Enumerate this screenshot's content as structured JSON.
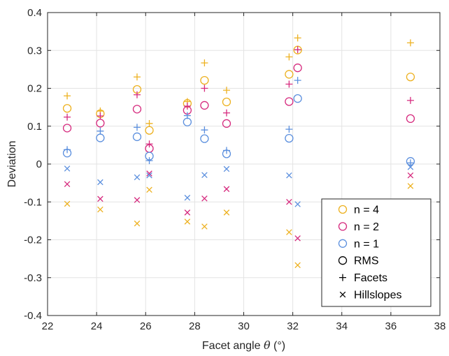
{
  "chart_data": {
    "type": "scatter",
    "xlabel_prefix": "Facet angle ",
    "xlabel_symbol": "θ",
    "xlabel_suffix": " (°)",
    "ylabel": "Deviation",
    "xlim": [
      22,
      38
    ],
    "ylim": [
      -0.4,
      0.4
    ],
    "xticks": [
      22,
      24,
      26,
      28,
      30,
      32,
      34,
      36,
      38
    ],
    "yticks": [
      -0.4,
      -0.3,
      -0.2,
      -0.1,
      0,
      0.1,
      0.2,
      0.3,
      0.4
    ],
    "xtick_labels": [
      "22",
      "24",
      "26",
      "28",
      "30",
      "32",
      "34",
      "36",
      "38"
    ],
    "ytick_labels": [
      "-0.4",
      "-0.3",
      "-0.2",
      "-0.1",
      "0",
      "0.1",
      "0.2",
      "0.3",
      "0.4"
    ],
    "grid": true,
    "legend_position": "bottom-right",
    "colors": {
      "n4": "#EDB120",
      "n2": "#D62A7E",
      "n1": "#5B8FDE",
      "marker_key": "#000000"
    },
    "legend": [
      {
        "label": "n = 4",
        "marker": "circle",
        "color_key": "n4"
      },
      {
        "label": "n = 2",
        "marker": "circle",
        "color_key": "n2"
      },
      {
        "label": "n = 1",
        "marker": "circle",
        "color_key": "n1"
      },
      {
        "label": "RMS",
        "marker": "circle",
        "color_key": "marker_key"
      },
      {
        "label": "Facets",
        "marker": "plus",
        "color_key": "marker_key"
      },
      {
        "label": "Hillslopes",
        "marker": "cross",
        "color_key": "marker_key"
      }
    ],
    "series": [
      {
        "n": "n4",
        "marker": "circle",
        "points": [
          [
            22.8,
            0.147
          ],
          [
            24.15,
            0.133
          ],
          [
            25.65,
            0.197
          ],
          [
            26.15,
            0.089
          ],
          [
            27.7,
            0.16
          ],
          [
            28.4,
            0.221
          ],
          [
            29.3,
            0.164
          ],
          [
            31.85,
            0.237
          ],
          [
            32.2,
            0.301
          ],
          [
            36.8,
            0.23
          ]
        ]
      },
      {
        "n": "n4",
        "marker": "plus",
        "points": [
          [
            22.8,
            0.18
          ],
          [
            24.15,
            0.14
          ],
          [
            25.65,
            0.23
          ],
          [
            26.15,
            0.107
          ],
          [
            27.7,
            0.165
          ],
          [
            28.4,
            0.267
          ],
          [
            29.3,
            0.195
          ],
          [
            31.85,
            0.283
          ],
          [
            32.2,
            0.333
          ],
          [
            36.8,
            0.32
          ]
        ]
      },
      {
        "n": "n4",
        "marker": "cross",
        "points": [
          [
            22.8,
            -0.105
          ],
          [
            24.15,
            -0.12
          ],
          [
            25.65,
            -0.157
          ],
          [
            26.15,
            -0.068
          ],
          [
            27.7,
            -0.152
          ],
          [
            28.4,
            -0.165
          ],
          [
            29.3,
            -0.128
          ],
          [
            31.85,
            -0.18
          ],
          [
            32.2,
            -0.267
          ],
          [
            36.8,
            -0.058
          ]
        ]
      },
      {
        "n": "n2",
        "marker": "circle",
        "points": [
          [
            22.8,
            0.095
          ],
          [
            24.15,
            0.108
          ],
          [
            25.65,
            0.145
          ],
          [
            26.15,
            0.041
          ],
          [
            27.7,
            0.142
          ],
          [
            28.4,
            0.155
          ],
          [
            29.3,
            0.107
          ],
          [
            31.85,
            0.165
          ],
          [
            32.2,
            0.254
          ],
          [
            36.8,
            0.12
          ]
        ]
      },
      {
        "n": "n2",
        "marker": "plus",
        "points": [
          [
            22.8,
            0.124
          ],
          [
            24.15,
            0.127
          ],
          [
            25.65,
            0.183
          ],
          [
            26.15,
            0.053
          ],
          [
            27.7,
            0.153
          ],
          [
            28.4,
            0.2
          ],
          [
            29.3,
            0.135
          ],
          [
            31.85,
            0.211
          ],
          [
            32.2,
            0.302
          ],
          [
            36.8,
            0.168
          ]
        ]
      },
      {
        "n": "n2",
        "marker": "cross",
        "points": [
          [
            22.8,
            -0.053
          ],
          [
            24.15,
            -0.092
          ],
          [
            25.65,
            -0.095
          ],
          [
            26.15,
            -0.025
          ],
          [
            27.7,
            -0.128
          ],
          [
            28.4,
            -0.091
          ],
          [
            29.3,
            -0.066
          ],
          [
            31.85,
            -0.1
          ],
          [
            32.2,
            -0.196
          ],
          [
            36.8,
            -0.03
          ]
        ]
      },
      {
        "n": "n1",
        "marker": "circle",
        "points": [
          [
            22.8,
            0.029
          ],
          [
            24.15,
            0.069
          ],
          [
            25.65,
            0.072
          ],
          [
            26.15,
            0.021
          ],
          [
            27.7,
            0.111
          ],
          [
            28.4,
            0.067
          ],
          [
            29.3,
            0.027
          ],
          [
            31.85,
            0.068
          ],
          [
            32.2,
            0.173
          ],
          [
            36.8,
            0.007
          ]
        ]
      },
      {
        "n": "n1",
        "marker": "plus",
        "points": [
          [
            22.8,
            0.038
          ],
          [
            24.15,
            0.087
          ],
          [
            25.65,
            0.097
          ],
          [
            26.15,
            0.009
          ],
          [
            27.7,
            0.128
          ],
          [
            28.4,
            0.09
          ],
          [
            29.3,
            0.036
          ],
          [
            31.85,
            0.092
          ],
          [
            32.2,
            0.221
          ],
          [
            36.8,
            0.003
          ]
        ]
      },
      {
        "n": "n1",
        "marker": "cross",
        "points": [
          [
            22.8,
            -0.012
          ],
          [
            24.15,
            -0.048
          ],
          [
            25.65,
            -0.035
          ],
          [
            26.15,
            -0.03
          ],
          [
            27.7,
            -0.089
          ],
          [
            28.4,
            -0.029
          ],
          [
            29.3,
            -0.013
          ],
          [
            31.85,
            -0.03
          ],
          [
            32.2,
            -0.106
          ],
          [
            36.8,
            -0.008
          ]
        ]
      }
    ]
  }
}
